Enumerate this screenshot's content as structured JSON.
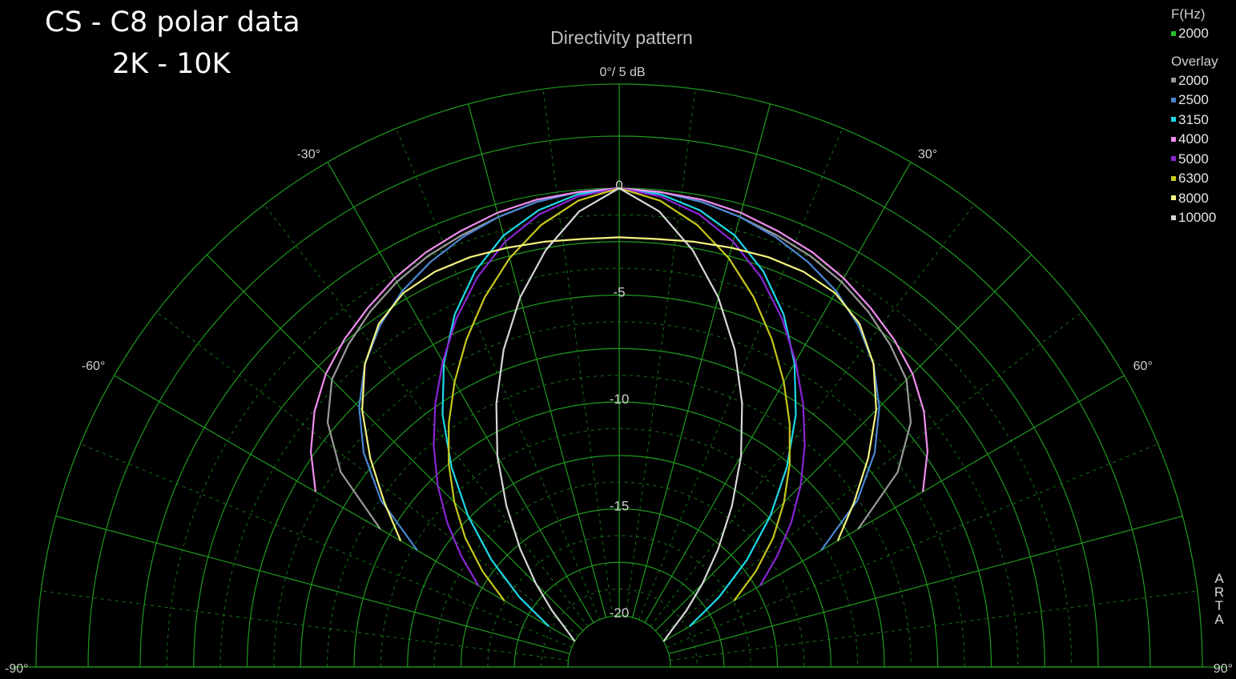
{
  "slide": {
    "title_line1": "CS - C8 polar data",
    "title_line2": "2K - 10K"
  },
  "brand_text": [
    "A",
    "R",
    "T",
    "A"
  ],
  "legend": {
    "freq_header": "F(Hz)",
    "current": {
      "label": "2000",
      "color": "#22c02a"
    },
    "overlay_header": "Overlay",
    "overlay": [
      {
        "label": "2000",
        "color": "#9a9a9a"
      },
      {
        "label": "2500",
        "color": "#4a86d2"
      },
      {
        "label": "3150",
        "color": "#1ed8e8"
      },
      {
        "label": "4000",
        "color": "#f08ef0"
      },
      {
        "label": "5000",
        "color": "#8a24d4"
      },
      {
        "label": "6300",
        "color": "#c8c81c"
      },
      {
        "label": "8000",
        "color": "#f4f480"
      },
      {
        "label": "10000",
        "color": "#d8d8d8"
      }
    ]
  },
  "chart_data": {
    "type": "polar",
    "title": "Directivity pattern",
    "scale_label": "0°/ 5 dB",
    "angle_range_deg": [
      -90,
      90
    ],
    "radial_range_db": [
      -20,
      0
    ],
    "angle_tick_labels": [
      {
        "deg": -90,
        "text": "-90°"
      },
      {
        "deg": -60,
        "text": "-60°"
      },
      {
        "deg": -30,
        "text": "-30°"
      },
      {
        "deg": 30,
        "text": "30°"
      },
      {
        "deg": 60,
        "text": "60°"
      },
      {
        "deg": 90,
        "text": "90°"
      }
    ],
    "radial_tick_labels": [
      {
        "db": 0,
        "text": "0"
      },
      {
        "db": -5,
        "text": "-5"
      },
      {
        "db": -10,
        "text": "-10"
      },
      {
        "db": -15,
        "text": "-15"
      },
      {
        "db": -20,
        "text": "-20"
      }
    ],
    "grid_color": "#1f9a1f",
    "angles": [
      0,
      5,
      10,
      15,
      20,
      25,
      30,
      35,
      40,
      45,
      50,
      55,
      60
    ],
    "series": [
      {
        "label": "2000",
        "color": "#9a9a9a",
        "db": [
          0,
          -0.1,
          -0.3,
          -0.6,
          -0.9,
          -1.2,
          -1.6,
          -2.1,
          -2.7,
          -3.4,
          -4.6,
          -6.5,
          -9.5
        ]
      },
      {
        "label": "2500",
        "color": "#4a86d2",
        "db": [
          0,
          -0.1,
          -0.3,
          -0.6,
          -1.0,
          -1.5,
          -2.1,
          -2.9,
          -3.9,
          -5.2,
          -6.8,
          -8.8,
          -11.5
        ]
      },
      {
        "label": "3150",
        "color": "#1ed8e8",
        "db": [
          0,
          -0.2,
          -0.7,
          -1.5,
          -2.7,
          -4.2,
          -6.0,
          -8.0,
          -10.2,
          -12.4,
          -14.6,
          -16.7,
          -18.6
        ]
      },
      {
        "label": "4000",
        "color": "#f08ef0",
        "db": [
          0,
          -0.1,
          -0.2,
          -0.4,
          -0.7,
          -1.0,
          -1.4,
          -1.9,
          -2.4,
          -3.0,
          -3.8,
          -4.8,
          -6.0
        ]
      },
      {
        "label": "5000",
        "color": "#8a24d4",
        "db": [
          0,
          -0.3,
          -0.9,
          -1.8,
          -3.0,
          -4.4,
          -5.9,
          -7.4,
          -8.9,
          -10.4,
          -11.9,
          -13.4,
          -14.8
        ]
      },
      {
        "label": "6300",
        "color": "#c8c81c",
        "db": [
          0,
          -0.5,
          -1.4,
          -2.6,
          -4.0,
          -5.5,
          -7.0,
          -8.5,
          -10.0,
          -11.5,
          -13.0,
          -14.6,
          -16.2
        ]
      },
      {
        "label": "8000",
        "color": "#f4f480",
        "db": [
          -2.3,
          -2.3,
          -2.2,
          -2.1,
          -2.0,
          -2.0,
          -2.2,
          -2.8,
          -3.9,
          -5.4,
          -7.2,
          -9.0,
          -10.6
        ]
      },
      {
        "label": "10000",
        "color": "#d8d8d8",
        "db": [
          0,
          -1.0,
          -2.6,
          -4.5,
          -6.6,
          -8.8,
          -11.0,
          -13.2,
          -15.2,
          -16.9,
          -18.3,
          -19.4,
          -20.0
        ]
      }
    ]
  }
}
